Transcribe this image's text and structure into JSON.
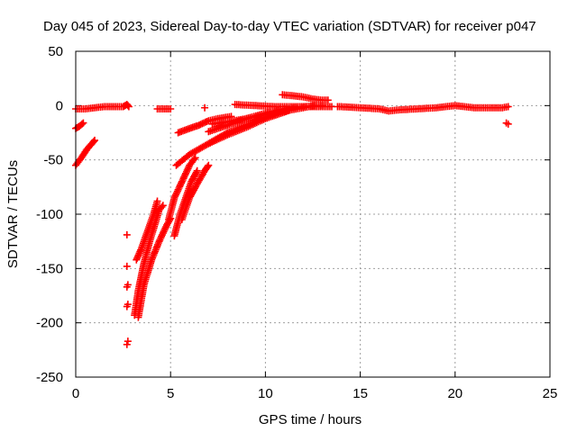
{
  "chart_data": {
    "type": "scatter",
    "title": "Day 045 of 2023, Sidereal Day-to-day VTEC variation (SDTVAR) for receiver p047",
    "xlabel": "GPS time / hours",
    "ylabel": "SDTVAR / TECUs",
    "xlim": [
      0,
      25
    ],
    "ylim": [
      -250,
      50
    ],
    "xticks": [
      0,
      5,
      10,
      15,
      20,
      25
    ],
    "yticks": [
      50,
      0,
      -50,
      -100,
      -150,
      -200,
      -250
    ],
    "grid": true,
    "marker": "+",
    "series_color": "#ff0000",
    "series": [
      {
        "name": "segment-early-flat",
        "segments": [
          [
            [
              0.0,
              -3
            ],
            [
              0.5,
              -3
            ],
            [
              1.0,
              -2
            ],
            [
              1.5,
              -1
            ],
            [
              2.0,
              -1
            ],
            [
              2.5,
              -1
            ],
            [
              2.7,
              1
            ],
            [
              2.8,
              -1
            ]
          ]
        ]
      },
      {
        "name": "arc-early-short",
        "segments": [
          [
            [
              0.0,
              -21
            ],
            [
              0.2,
              -19
            ],
            [
              0.4,
              -16
            ]
          ]
        ]
      },
      {
        "name": "arc-early-long",
        "segments": [
          [
            [
              0.0,
              -55
            ],
            [
              0.3,
              -48
            ],
            [
              0.6,
              -40
            ],
            [
              0.9,
              -34
            ],
            [
              1.0,
              -32
            ]
          ]
        ]
      },
      {
        "name": "outliers-2.7h",
        "segments": [
          [
            [
              2.7,
              -119
            ]
          ],
          [
            [
              2.7,
              -148
            ]
          ],
          [
            [
              2.75,
              -165
            ]
          ],
          [
            [
              2.7,
              -167
            ]
          ],
          [
            [
              2.75,
              -183
            ]
          ],
          [
            [
              2.7,
              -185
            ]
          ],
          [
            [
              2.75,
              -217
            ]
          ],
          [
            [
              2.7,
              -220
            ]
          ]
        ]
      },
      {
        "name": "arc-steep-a",
        "segments": [
          [
            [
              3.2,
              -142
            ],
            [
              3.5,
              -130
            ],
            [
              3.8,
              -115
            ],
            [
              4.1,
              -100
            ],
            [
              4.3,
              -88
            ]
          ]
        ]
      },
      {
        "name": "arc-steep-b",
        "segments": [
          [
            [
              3.1,
              -193
            ],
            [
              3.3,
              -170
            ],
            [
              3.6,
              -145
            ],
            [
              3.9,
              -125
            ],
            [
              4.2,
              -108
            ],
            [
              4.4,
              -96
            ],
            [
              4.6,
              -92
            ]
          ]
        ]
      },
      {
        "name": "arc-steep-c",
        "segments": [
          [
            [
              3.3,
              -195
            ],
            [
              3.6,
              -165
            ],
            [
              4.0,
              -142
            ],
            [
              4.4,
              -125
            ],
            [
              4.8,
              -110
            ],
            [
              5.0,
              -104
            ]
          ]
        ]
      },
      {
        "name": "arc-steep-d",
        "segments": [
          [
            [
              4.9,
              -105
            ],
            [
              5.2,
              -85
            ],
            [
              5.6,
              -70
            ],
            [
              6.0,
              -55
            ],
            [
              6.3,
              -48
            ]
          ]
        ]
      },
      {
        "name": "arc-steep-e",
        "segments": [
          [
            [
              5.2,
              -120
            ],
            [
              5.5,
              -100
            ],
            [
              5.8,
              -85
            ],
            [
              6.1,
              -70
            ],
            [
              6.4,
              -60
            ]
          ]
        ]
      },
      {
        "name": "arc-steep-f",
        "segments": [
          [
            [
              5.6,
              -105
            ],
            [
              6.0,
              -85
            ],
            [
              6.4,
              -72
            ],
            [
              6.8,
              -60
            ],
            [
              7.0,
              -55
            ]
          ]
        ]
      },
      {
        "name": "segment-gap-flat",
        "segments": [
          [
            [
              4.3,
              -3
            ],
            [
              4.6,
              -3
            ],
            [
              5.0,
              -3
            ]
          ],
          [
            [
              6.8,
              -2
            ]
          ]
        ]
      },
      {
        "name": "arc-rise-1",
        "segments": [
          [
            [
              5.4,
              -25
            ],
            [
              6.0,
              -21
            ],
            [
              6.5,
              -18
            ],
            [
              7.0,
              -14
            ],
            [
              7.5,
              -12
            ],
            [
              8.2,
              -10
            ]
          ]
        ]
      },
      {
        "name": "arc-rise-2",
        "segments": [
          [
            [
              5.3,
              -55
            ],
            [
              6.0,
              -45
            ],
            [
              7.0,
              -35
            ],
            [
              8.0,
              -27
            ],
            [
              9.0,
              -20
            ],
            [
              10.0,
              -12
            ],
            [
              11.0,
              -6
            ],
            [
              11.3,
              -4
            ]
          ]
        ]
      },
      {
        "name": "arc-rise-3",
        "segments": [
          [
            [
              7.0,
              -35
            ],
            [
              8.0,
              -25
            ],
            [
              9.0,
              -18
            ],
            [
              10.0,
              -11
            ],
            [
              11.0,
              -5
            ],
            [
              12.0,
              -2
            ],
            [
              12.6,
              0
            ]
          ]
        ]
      },
      {
        "name": "arc-rise-4",
        "segments": [
          [
            [
              7.0,
              -24
            ],
            [
              8.0,
              -18
            ],
            [
              9.0,
              -12
            ],
            [
              10.0,
              -7
            ],
            [
              11.0,
              -3
            ],
            [
              12.0,
              -1
            ],
            [
              13.0,
              0
            ]
          ]
        ]
      },
      {
        "name": "arc-rise-5",
        "segments": [
          [
            [
              7.2,
              -17
            ],
            [
              8.0,
              -15
            ],
            [
              9.0,
              -12
            ],
            [
              10.0,
              -8
            ],
            [
              11.0,
              -3
            ]
          ]
        ]
      },
      {
        "name": "arc-rise-6",
        "segments": [
          [
            [
              8.4,
              1
            ],
            [
              9.5,
              0
            ],
            [
              10.5,
              -1
            ],
            [
              11.5,
              -1
            ],
            [
              12.5,
              -1
            ],
            [
              13.5,
              -1
            ]
          ]
        ]
      },
      {
        "name": "arc-decline",
        "segments": [
          [
            [
              10.9,
              10
            ],
            [
              11.5,
              9
            ],
            [
              12.0,
              8
            ],
            [
              12.5,
              6
            ],
            [
              13.0,
              5
            ],
            [
              13.3,
              5
            ]
          ]
        ]
      },
      {
        "name": "segment-late-flat",
        "segments": [
          [
            [
              13.8,
              -1
            ],
            [
              14.0,
              -1
            ],
            [
              15.0,
              -2
            ],
            [
              16.0,
              -3
            ],
            [
              16.5,
              -5
            ],
            [
              17.0,
              -4
            ],
            [
              18.0,
              -3
            ],
            [
              19.0,
              -2
            ],
            [
              20.0,
              0
            ],
            [
              20.5,
              -1
            ],
            [
              21.0,
              -2
            ],
            [
              21.5,
              -2
            ],
            [
              22.0,
              -2
            ],
            [
              22.5,
              -2
            ],
            [
              22.8,
              -1
            ]
          ]
        ]
      },
      {
        "name": "outliers-22.7h",
        "segments": [
          [
            [
              22.7,
              -16
            ]
          ],
          [
            [
              22.8,
              -17
            ]
          ]
        ]
      }
    ]
  }
}
